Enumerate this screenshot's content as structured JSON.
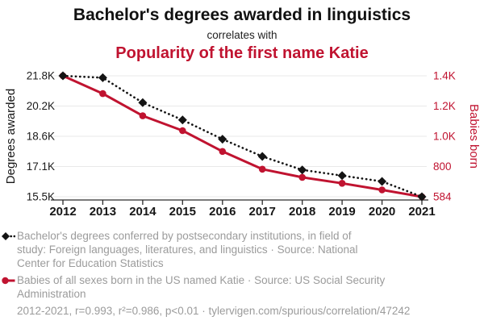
{
  "header": {
    "title": "Bachelor's degrees awarded in linguistics",
    "connector": "correlates with",
    "subtitle": "Popularity of the first name Katie"
  },
  "colors": {
    "accent_red": "#c01330",
    "series_black": "#141414",
    "legend_gray": "#9b9b9b",
    "gridline": "#e9e9e9",
    "axis": "#2b2b2b"
  },
  "chart_data": {
    "type": "line",
    "x": [
      2012,
      2013,
      2014,
      2015,
      2016,
      2017,
      2018,
      2019,
      2020,
      2021
    ],
    "series": [
      {
        "name": "Bachelor's degrees awarded in linguistics",
        "axis": "left",
        "color": "#141414",
        "line_style": "dotted",
        "marker": "diamond",
        "values": [
          21800,
          21700,
          20400,
          19500,
          18500,
          17600,
          16900,
          16600,
          16300,
          15500
        ]
      },
      {
        "name": "Babies born in the US named Katie",
        "axis": "right",
        "color": "#c01330",
        "line_style": "solid",
        "marker": "circle",
        "values": [
          1400,
          1280,
          1130,
          1030,
          890,
          770,
          715,
          675,
          630,
          584
        ]
      }
    ],
    "left_axis": {
      "label": "Degrees awarded",
      "ticks": [
        "21.8K",
        "20.2K",
        "18.6K",
        "17.1K",
        "15.5K"
      ],
      "ylim": [
        15500,
        21800
      ]
    },
    "right_axis": {
      "label": "Babies born",
      "ticks": [
        "1.4K",
        "1.2K",
        "1.0K",
        "800",
        "584"
      ],
      "ylim": [
        584,
        1400
      ]
    },
    "grid": "horizontal",
    "legend_position": "bottom"
  },
  "legend": {
    "items": [
      {
        "lines": [
          "Bachelor's degrees conferred by postsecondary institutions, in field of",
          "study: Foreign languages, literatures, and linguistics · Source: National",
          "Center for Education Statistics"
        ]
      },
      {
        "lines": [
          "Babies of all sexes born in the US named Katie · Source: US Social Security",
          "Administration"
        ]
      }
    ]
  },
  "footer": {
    "text": "2012-2021, r=0.993, r²=0.986, p<0.01 · tylervigen.com/spurious/correlation/47242"
  }
}
